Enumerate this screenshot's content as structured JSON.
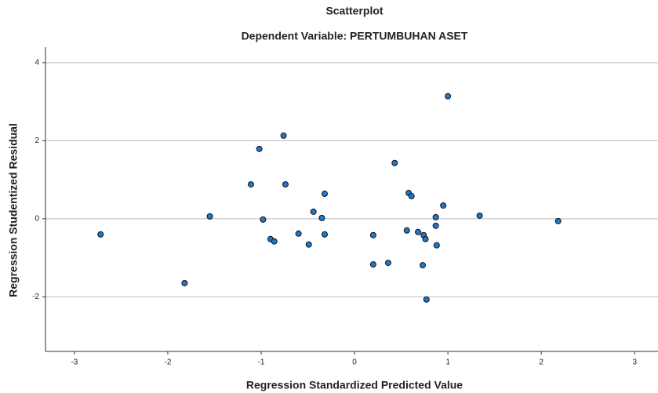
{
  "chart_data": {
    "type": "scatter",
    "title": "Scatterplot",
    "subtitle": "Dependent Variable: PERTUMBUHAN ASET",
    "x_label": "Regression Standardized Predicted Value",
    "y_label": "Regression Studentized Residual",
    "color": "#1f78c8",
    "x": [
      1.0,
      -0.76,
      -1.02,
      0.43,
      -1.11,
      -0.74,
      -0.32,
      0.58,
      0.61,
      0.95,
      -1.55,
      1.34,
      -0.44,
      -0.35,
      -0.98,
      0.87,
      2.18,
      0.87,
      -2.72,
      -0.6,
      -0.32,
      0.2,
      0.56,
      0.68,
      0.74,
      0.76,
      -0.9,
      -0.86,
      -0.49,
      0.88,
      0.2,
      0.36,
      0.73,
      -1.82,
      0.77
    ],
    "values": [
      3.14,
      2.13,
      1.79,
      1.43,
      0.88,
      0.88,
      0.64,
      0.66,
      0.58,
      0.34,
      0.06,
      0.08,
      0.18,
      0.02,
      -0.02,
      0.04,
      -0.06,
      -0.18,
      -0.4,
      -0.38,
      -0.4,
      -0.42,
      -0.3,
      -0.34,
      -0.42,
      -0.52,
      -0.52,
      -0.58,
      -0.66,
      -0.68,
      -1.17,
      -1.13,
      -1.19,
      -1.65,
      -2.07
    ],
    "xlim": [
      -3.31,
      3.25
    ],
    "ylim": [
      -3.4,
      4.4
    ],
    "xticks": [
      -3,
      -2,
      -1,
      0,
      1,
      2,
      3
    ],
    "yticks": [
      -2,
      0,
      2,
      4
    ],
    "grid": true
  }
}
